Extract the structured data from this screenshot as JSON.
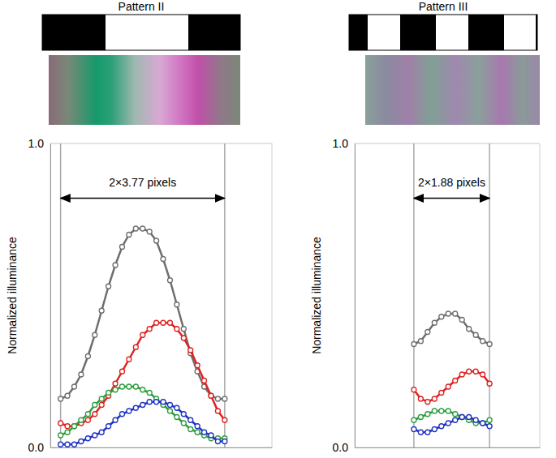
{
  "chart_data": [
    {
      "type": "line",
      "title": "Pattern II",
      "y_label": "Normalized illuminance",
      "x": [
        0,
        1,
        2,
        3,
        4,
        5,
        6,
        7,
        8,
        9,
        10,
        11,
        12,
        13,
        14,
        15,
        16,
        17,
        18,
        19,
        20,
        21,
        22,
        23,
        24
      ],
      "xlim": [
        -1.5,
        30.9
      ],
      "ylim": [
        0,
        1
      ],
      "yticks": [
        {
          "value": 0,
          "label": "0.0"
        },
        {
          "value": 1,
          "label": "1.0"
        }
      ],
      "tick_labels": "y",
      "grid": true,
      "marker": "circle",
      "series": [
        {
          "color": "#6e6e6e",
          "values": [
            0.16,
            0.17,
            0.2,
            0.24,
            0.3,
            0.37,
            0.45,
            0.53,
            0.6,
            0.66,
            0.7,
            0.72,
            0.72,
            0.71,
            0.68,
            0.62,
            0.55,
            0.47,
            0.39,
            0.31,
            0.25,
            0.2,
            0.17,
            0.16,
            0.16
          ]
        },
        {
          "color": "#e02222",
          "values": [
            0.08,
            0.07,
            0.07,
            0.08,
            0.09,
            0.11,
            0.14,
            0.17,
            0.21,
            0.25,
            0.29,
            0.33,
            0.37,
            0.39,
            0.41,
            0.41,
            0.41,
            0.39,
            0.36,
            0.32,
            0.27,
            0.22,
            0.17,
            0.12,
            0.09
          ]
        },
        {
          "color": "#2c9e3e",
          "values": [
            0.04,
            0.05,
            0.07,
            0.09,
            0.11,
            0.14,
            0.16,
            0.18,
            0.19,
            0.2,
            0.2,
            0.2,
            0.19,
            0.18,
            0.16,
            0.14,
            0.12,
            0.1,
            0.08,
            0.06,
            0.05,
            0.04,
            0.03,
            0.03,
            0.03
          ]
        },
        {
          "color": "#2233c4",
          "values": [
            0.01,
            0.01,
            0.01,
            0.02,
            0.03,
            0.04,
            0.05,
            0.07,
            0.09,
            0.11,
            0.12,
            0.13,
            0.14,
            0.15,
            0.15,
            0.15,
            0.14,
            0.13,
            0.11,
            0.09,
            0.07,
            0.05,
            0.04,
            0.02,
            0.02
          ]
        }
      ],
      "annotations": [
        {
          "text": "2×3.77 pixels",
          "x": [
            0,
            24
          ],
          "y": 0.82
        }
      ]
    },
    {
      "type": "line",
      "title": "Pattern III",
      "y_label": "Normalized illuminance",
      "x": [
        0,
        1,
        2,
        3,
        4,
        5,
        6,
        7,
        8,
        9,
        10,
        11
      ],
      "xlim": [
        -8.6,
        18.3
      ],
      "ylim": [
        0,
        1
      ],
      "yticks": [
        {
          "value": 0,
          "label": "0.0"
        },
        {
          "value": 1,
          "label": "1.0"
        }
      ],
      "tick_labels": "y",
      "grid": true,
      "marker": "circle",
      "series": [
        {
          "color": "#6e6e6e",
          "values": [
            0.34,
            0.35,
            0.38,
            0.41,
            0.43,
            0.44,
            0.44,
            0.42,
            0.39,
            0.37,
            0.35,
            0.34
          ]
        },
        {
          "color": "#e02222",
          "values": [
            0.19,
            0.16,
            0.15,
            0.16,
            0.18,
            0.2,
            0.22,
            0.24,
            0.25,
            0.25,
            0.24,
            0.21
          ]
        },
        {
          "color": "#2c9e3e",
          "values": [
            0.09,
            0.1,
            0.11,
            0.12,
            0.12,
            0.12,
            0.11,
            0.1,
            0.09,
            0.08,
            0.08,
            0.09
          ]
        },
        {
          "color": "#2233c4",
          "values": [
            0.06,
            0.05,
            0.05,
            0.06,
            0.07,
            0.08,
            0.09,
            0.1,
            0.1,
            0.09,
            0.08,
            0.07
          ]
        }
      ],
      "annotations": [
        {
          "text": "2×1.88 pixels",
          "x": [
            0,
            11
          ],
          "y": 0.82
        }
      ]
    }
  ]
}
